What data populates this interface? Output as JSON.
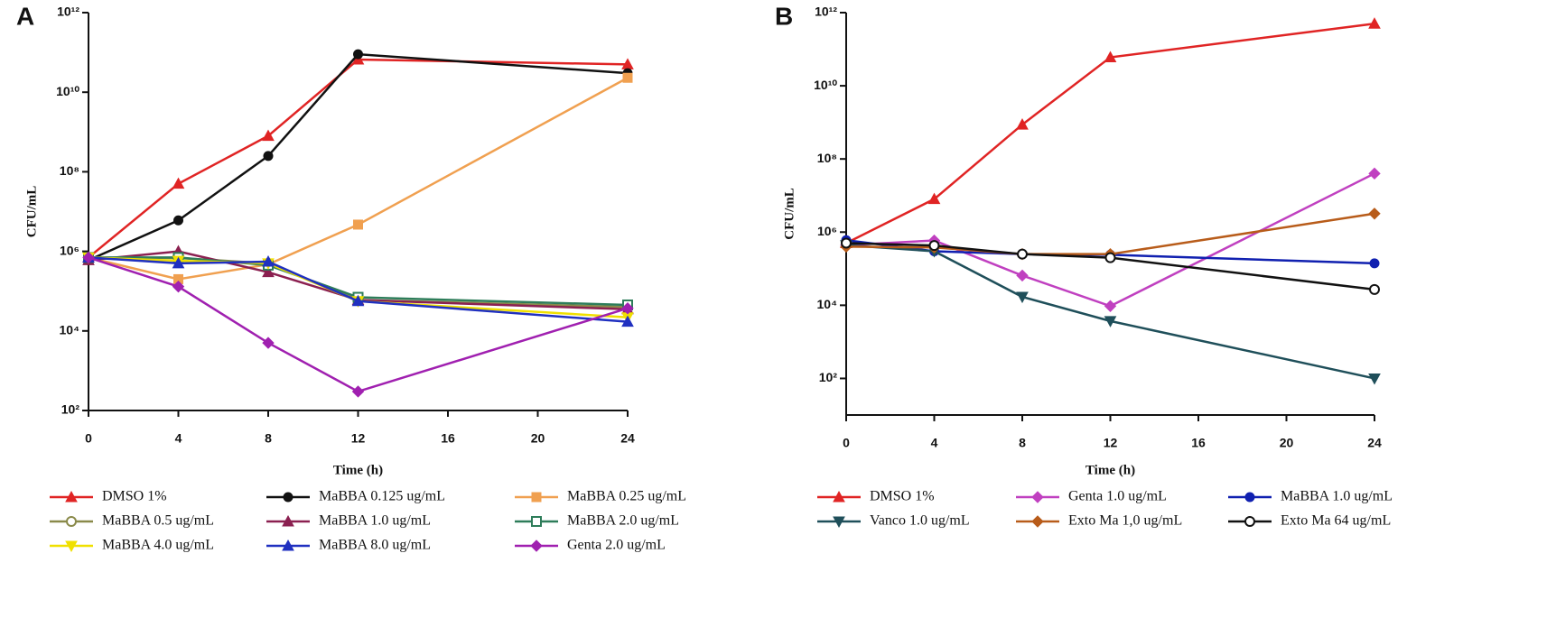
{
  "chart_data": [
    {
      "type": "line",
      "panel_label": "A",
      "x_label": "Time (h)",
      "y_label": "CFU/mL",
      "yscale": "log",
      "xlim": [
        0,
        24
      ],
      "xticks": [
        0,
        4,
        8,
        12,
        16,
        20,
        24
      ],
      "ylim": [
        100,
        1000000000000
      ],
      "yticks": [
        {
          "value": 100,
          "label": "10²"
        },
        {
          "value": 10000,
          "label": "10⁴"
        },
        {
          "value": 1000000,
          "label": "10⁶"
        },
        {
          "value": 100000000,
          "label": "10⁸"
        },
        {
          "value": 10000000000,
          "label": "10¹⁰"
        },
        {
          "value": 1000000000000,
          "label": "10¹²"
        }
      ],
      "x": [
        0,
        4,
        8,
        12,
        24
      ],
      "series": [
        {
          "name": "DMSO 1%",
          "color": "#e02424",
          "marker": "triangle",
          "values": [
            700000,
            50000000,
            800000000,
            66000000000,
            50000000000
          ]
        },
        {
          "name": "MaBBA 0.125 ug/mL",
          "color": "#111111",
          "marker": "circle",
          "values": [
            600000,
            6000000,
            250000000,
            90000000000,
            30000000000
          ]
        },
        {
          "name": "MaBBA 0.25 ug/mL",
          "color": "#f0a050",
          "marker": "square",
          "values": [
            700000,
            200000,
            470000,
            4700000,
            23000000000
          ]
        },
        {
          "name": "MaBBA 0.5 ug/mL",
          "color": "#8a8a4a",
          "marker": "circle-open",
          "values": [
            700000,
            680000,
            500000,
            60000,
            40000
          ]
        },
        {
          "name": "MaBBA 1.0 ug/mL",
          "color": "#8b2050",
          "marker": "triangle",
          "values": [
            600000,
            1000000,
            300000,
            60000,
            35000
          ]
        },
        {
          "name": "MaBBA 2.0 ug/mL",
          "color": "#2e7d5a",
          "marker": "square-open",
          "values": [
            700000,
            700000,
            450000,
            70000,
            45000
          ]
        },
        {
          "name": "MaBBA 4.0 ug/mL",
          "color": "#f0e000",
          "marker": "triangle-down",
          "values": [
            700000,
            580000,
            500000,
            56000,
            22000
          ]
        },
        {
          "name": "MaBBA 8.0 ug/mL",
          "color": "#2030c0",
          "marker": "triangle",
          "values": [
            700000,
            500000,
            550000,
            56000,
            17000
          ]
        },
        {
          "name": "Genta 2.0 ug/mL",
          "color": "#a020b0",
          "marker": "diamond",
          "values": [
            700000,
            130000,
            5000,
            300,
            37000
          ]
        }
      ]
    },
    {
      "type": "line",
      "panel_label": "B",
      "x_label": "Time (h)",
      "y_label": "CFU/mL",
      "yscale": "log",
      "xlim": [
        0,
        24
      ],
      "xticks": [
        0,
        4,
        8,
        12,
        16,
        20,
        24
      ],
      "ylim": [
        10,
        1000000000000
      ],
      "yticks": [
        {
          "value": 100,
          "label": "10²"
        },
        {
          "value": 10000,
          "label": "10⁴"
        },
        {
          "value": 1000000,
          "label": "10⁶"
        },
        {
          "value": 100000000,
          "label": "10⁸"
        },
        {
          "value": 10000000000,
          "label": "10¹⁰"
        },
        {
          "value": 1000000000000,
          "label": "10¹²"
        }
      ],
      "x": [
        0,
        4,
        8,
        12,
        24
      ],
      "series": [
        {
          "name": "DMSO 1%",
          "color": "#e02424",
          "marker": "triangle",
          "values": [
            500000,
            8000000,
            870000000,
            60000000000,
            500000000000
          ]
        },
        {
          "name": "Genta 1.0 ug/mL",
          "color": "#c040c0",
          "marker": "diamond",
          "values": [
            440000,
            590000,
            65000,
            9500,
            40000000
          ]
        },
        {
          "name": "MaBBA 1.0 ug/mL",
          "color": "#1020b0",
          "marker": "circle",
          "values": [
            600000,
            300000,
            250000,
            240000,
            140000
          ]
        },
        {
          "name": "Vanco 1.0 ug/mL",
          "color": "#1f4f5a",
          "marker": "triangle-down",
          "values": [
            440000,
            300000,
            17000,
            3700,
            100
          ]
        },
        {
          "name": "Exto Ma 1,0 ug/mL",
          "color": "#b85c1a",
          "marker": "diamond",
          "values": [
            400000,
            380000,
            250000,
            250000,
            3200000
          ]
        },
        {
          "name": "Exto Ma 64 ug/mL",
          "color": "#111111",
          "marker": "circle-open",
          "values": [
            500000,
            430000,
            250000,
            200000,
            27000
          ]
        }
      ]
    }
  ]
}
